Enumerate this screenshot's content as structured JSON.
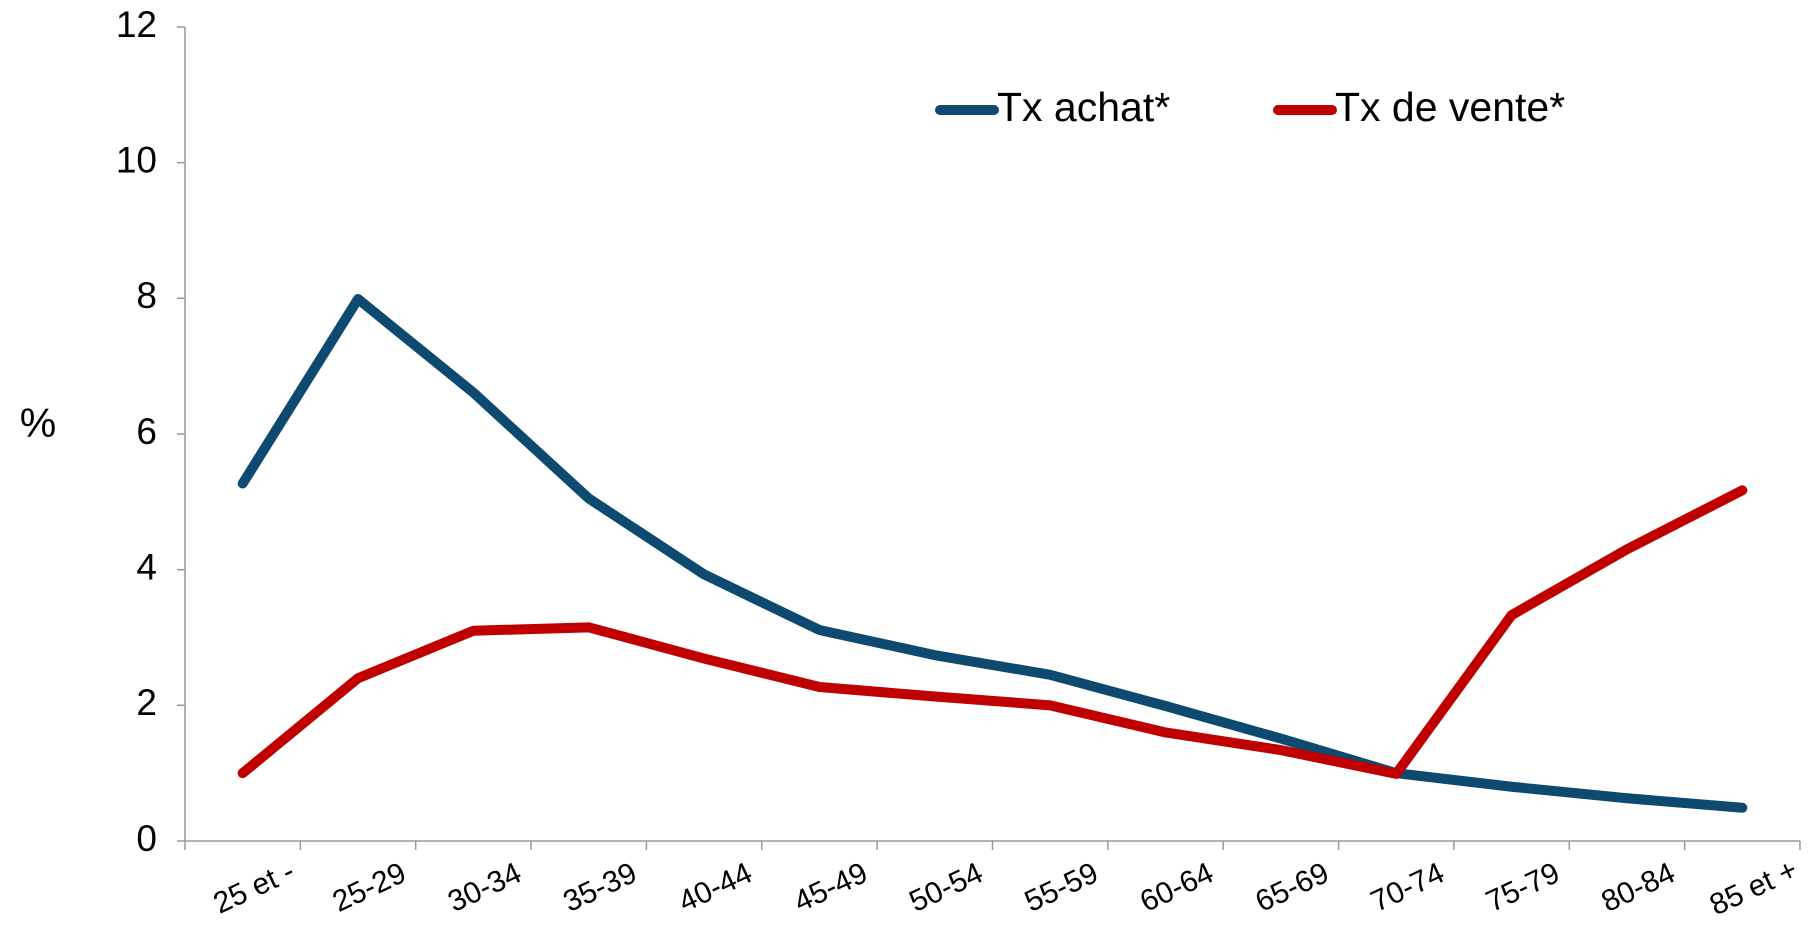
{
  "chart_data": {
    "type": "line",
    "y_label": "%",
    "categories": [
      "25 et -",
      "25-29",
      "30-34",
      "35-39",
      "40-44",
      "45-49",
      "50-54",
      "55-59",
      "60-64",
      "65-69",
      "70-74",
      "75-79",
      "80-84",
      "85 et +"
    ],
    "series": [
      {
        "name": "Tx achat*",
        "color": "#0e4a70",
        "values": [
          5.27,
          7.99,
          6.61,
          5.05,
          3.93,
          3.11,
          2.74,
          2.45,
          1.99,
          1.51,
          1.0,
          0.8,
          0.63,
          0.49
        ]
      },
      {
        "name": "Tx de vente*",
        "color": "#c00000",
        "values": [
          1.0,
          2.4,
          3.1,
          3.15,
          2.69,
          2.27,
          2.13,
          2.0,
          1.6,
          1.34,
          0.99,
          3.33,
          4.3,
          5.17
        ]
      }
    ],
    "ylim": [
      0,
      12
    ],
    "yticks": [
      0,
      2,
      4,
      6,
      8,
      10,
      12
    ],
    "grid": false,
    "legend": "top"
  }
}
